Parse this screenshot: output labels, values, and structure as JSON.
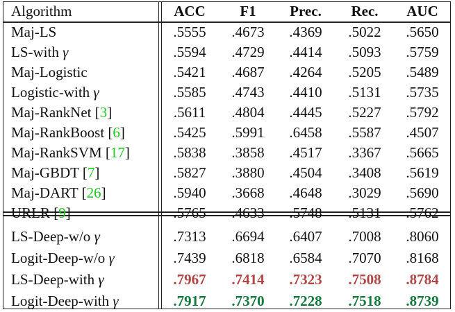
{
  "columns": [
    "Algorithm",
    "ACC",
    "F1",
    "Prec.",
    "Rec.",
    "AUC"
  ],
  "group1": [
    {
      "name": "Maj-LS",
      "ref": "",
      "gamma": "",
      "values": [
        ".5555",
        ".4673",
        ".4369",
        ".5022",
        ".5650"
      ]
    },
    {
      "name": "LS-with ",
      "ref": "",
      "gamma": "γ",
      "values": [
        ".5594",
        ".4729",
        ".4414",
        ".5093",
        ".5759"
      ]
    },
    {
      "name": "Maj-Logistic",
      "ref": "",
      "gamma": "",
      "values": [
        ".5421",
        ".4687",
        ".4264",
        ".5205",
        ".5489"
      ]
    },
    {
      "name": "Logistic-with ",
      "ref": "",
      "gamma": "γ",
      "values": [
        ".5585",
        ".4743",
        ".4410",
        ".5131",
        ".5735"
      ]
    },
    {
      "name": "Maj-RankNet ",
      "ref": "3",
      "gamma": "",
      "values": [
        ".5611",
        ".4804",
        ".4445",
        ".5227",
        ".5792"
      ]
    },
    {
      "name": "Maj-RankBoost ",
      "ref": "6",
      "gamma": "",
      "values": [
        ".5425",
        ".5991",
        ".6458",
        ".5587",
        ".4507"
      ]
    },
    {
      "name": "Maj-RankSVM ",
      "ref": "17",
      "gamma": "",
      "values": [
        ".5838",
        ".3858",
        ".4517",
        ".3367",
        ".5665"
      ]
    },
    {
      "name": "Maj-GBDT ",
      "ref": "7",
      "gamma": "",
      "values": [
        ".5827",
        ".3880",
        ".4504",
        ".3408",
        ".5619"
      ]
    },
    {
      "name": "Maj-DART ",
      "ref": "26",
      "gamma": "",
      "values": [
        ".5940",
        ".3668",
        ".4648",
        ".3029",
        ".5690"
      ]
    },
    {
      "name": "URLR ",
      "ref": "9",
      "gamma": "",
      "values": [
        ".5765",
        ".4633",
        ".5748",
        ".5131",
        ".5762"
      ]
    }
  ],
  "group2": [
    {
      "name": "LS-Deep-w/o ",
      "gamma": "γ",
      "style": "",
      "values": [
        ".7313",
        ".6694",
        ".6407",
        ".7008",
        ".8060"
      ]
    },
    {
      "name": "Logit-Deep-w/o ",
      "gamma": "γ",
      "style": "",
      "values": [
        ".7439",
        ".6818",
        ".6584",
        ".7070",
        ".8168"
      ]
    },
    {
      "name": "LS-Deep-with ",
      "gamma": "γ",
      "style": "red",
      "values": [
        ".7967",
        ".7414",
        ".7323",
        ".7508",
        ".8784"
      ]
    },
    {
      "name": "Logit-Deep-with ",
      "gamma": "γ",
      "style": "green",
      "values": [
        ".7917",
        ".7370",
        ".7228",
        ".7518",
        ".8739"
      ]
    }
  ],
  "colors": {
    "best": "#b04545",
    "second": "#127a3c",
    "citation": "#1ec81e"
  }
}
